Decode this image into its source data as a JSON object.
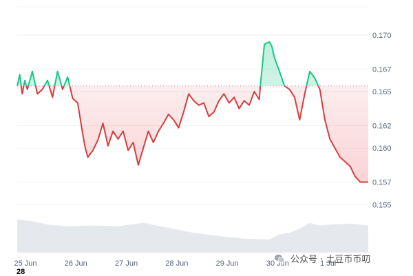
{
  "chart_data": {
    "type": "line",
    "yticks": [
      "0.170",
      "0.167",
      "0.165",
      "0.162",
      "0.160",
      "0.157",
      "0.155"
    ],
    "ylim": [
      0.151,
      0.1725
    ],
    "xticks": [
      "25 Jun",
      "26 Jun",
      "27 Jun",
      "28 Jun",
      "29 Jun",
      "30 Jun",
      "1 Jul"
    ],
    "xtick_positions_days": [
      0,
      1,
      2,
      3,
      4,
      5,
      6
    ],
    "xlim": [
      0,
      6.96
    ],
    "baseline": 0.1655,
    "colors": {
      "above": "#16c784",
      "below": "#d63d3d",
      "above_fill": "#16c784",
      "below_fill": "#ea3943",
      "volume": "#dfe3ea"
    },
    "grid": true,
    "series": [
      {
        "x": [
          0,
          0.05,
          0.1,
          0.15,
          0.2,
          0.3,
          0.4,
          0.5,
          0.6,
          0.7,
          0.8,
          0.9,
          1.0,
          1.1,
          1.2,
          1.3,
          1.35,
          1.4,
          1.5,
          1.6,
          1.7,
          1.8,
          1.9,
          2.0,
          2.1,
          2.2,
          2.3,
          2.4,
          2.5,
          2.6,
          2.7,
          2.8,
          2.9,
          3.0,
          3.1,
          3.2,
          3.3,
          3.4,
          3.5,
          3.6,
          3.7,
          3.8,
          3.9,
          4.0,
          4.1,
          4.2,
          4.3,
          4.4,
          4.5,
          4.6,
          4.7,
          4.8,
          4.82,
          4.9,
          5.0,
          5.05,
          5.1,
          5.2,
          5.3,
          5.4,
          5.5,
          5.6,
          5.7,
          5.8,
          5.9,
          6.0,
          6.1,
          6.2,
          6.3,
          6.4,
          6.5,
          6.6,
          6.7,
          6.8,
          6.96
        ],
        "y": [
          0.1655,
          0.1665,
          0.1648,
          0.166,
          0.1652,
          0.1668,
          0.1648,
          0.1652,
          0.166,
          0.1645,
          0.1668,
          0.1652,
          0.1663,
          0.1644,
          0.164,
          0.1612,
          0.16,
          0.1592,
          0.1598,
          0.1607,
          0.1622,
          0.1602,
          0.1615,
          0.1608,
          0.1615,
          0.1598,
          0.1605,
          0.1585,
          0.16,
          0.1615,
          0.1605,
          0.1615,
          0.1622,
          0.163,
          0.1625,
          0.1618,
          0.1632,
          0.1648,
          0.1642,
          0.1638,
          0.164,
          0.1628,
          0.1632,
          0.1642,
          0.1648,
          0.164,
          0.1645,
          0.1635,
          0.1642,
          0.1638,
          0.165,
          0.1643,
          0.1655,
          0.1692,
          0.1694,
          0.169,
          0.168,
          0.1668,
          0.1655,
          0.1652,
          0.1645,
          0.1625,
          0.1648,
          0.1668,
          0.1662,
          0.1652,
          0.1625,
          0.1608,
          0.16,
          0.1592,
          0.1588,
          0.1584,
          0.1575,
          0.157,
          0.157
        ]
      }
    ],
    "volume": {
      "x": [
        0,
        0.3,
        0.6,
        1.0,
        1.5,
        2.0,
        2.5,
        3.0,
        3.5,
        4.0,
        4.5,
        5.0,
        5.2,
        5.4,
        5.6,
        5.8,
        6.0,
        6.2,
        6.4,
        6.6,
        6.96
      ],
      "y": [
        1.0,
        0.95,
        0.85,
        0.8,
        0.82,
        0.8,
        0.9,
        0.75,
        0.6,
        0.5,
        0.42,
        0.4,
        0.55,
        0.6,
        0.72,
        0.9,
        0.82,
        0.85,
        0.86,
        0.88,
        0.82
      ]
    }
  },
  "footer_label": "28",
  "watermark": {
    "text": "公众号 · 土豆币币叨",
    "icon": "wechat-icon"
  }
}
